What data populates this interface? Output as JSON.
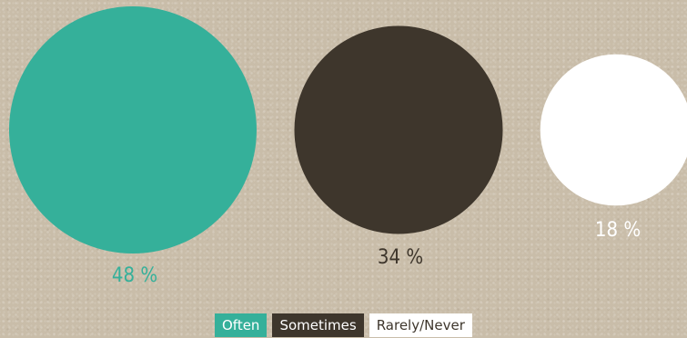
{
  "chart_data": {
    "type": "bubble",
    "title": "",
    "categories": [
      "Often",
      "Sometimes",
      "Rarely/Never"
    ],
    "values": [
      48,
      34,
      18
    ],
    "value_labels": [
      "48 %",
      "34 %",
      "18 %"
    ],
    "colors": [
      "#35b09a",
      "#3e362c",
      "#ffffff"
    ],
    "label_colors": [
      "#35b09a",
      "#3e362c",
      "#ffffff"
    ],
    "legend_text_colors": [
      "#ffffff",
      "#ffffff",
      "#3e362c"
    ],
    "legend_position": "bottom-center",
    "grid": false
  }
}
